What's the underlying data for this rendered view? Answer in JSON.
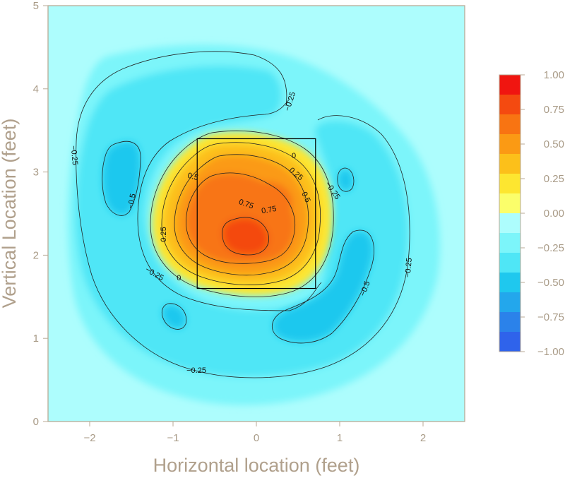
{
  "chart_data": {
    "type": "heatmap",
    "title": "",
    "xlabel": "Horizontal location (feet)",
    "ylabel": "Vertical Location (feet)",
    "xlim": [
      -2.5,
      2.5
    ],
    "ylim": [
      0,
      5
    ],
    "x_ticks": [
      -2,
      -1,
      0,
      1,
      2
    ],
    "x_tick_labels": [
      "−2",
      "−1",
      "0",
      "1",
      "2"
    ],
    "y_ticks": [
      0,
      1,
      2,
      3,
      4,
      5
    ],
    "y_tick_labels": [
      "0",
      "1",
      "2",
      "3",
      "4",
      "5"
    ],
    "strike_zone": {
      "x": [
        -0.71,
        0.71
      ],
      "y": [
        1.6,
        3.4
      ]
    },
    "colorbar": {
      "range": [
        -1.0,
        1.0
      ],
      "ticks": [
        1.0,
        0.75,
        0.5,
        0.25,
        0.0,
        -0.25,
        -0.5,
        -0.75,
        -1.0
      ],
      "tick_labels": [
        "1.00",
        "0.75",
        "0.50",
        "0.25",
        "0.00",
        "−0.25",
        "−0.50",
        "−0.75",
        "−1.00"
      ],
      "colors": [
        "#f01510",
        "#f44a10",
        "#f87412",
        "#fb9a14",
        "#fcc01a",
        "#fde630",
        "#fbfe6a",
        "#adfdfd",
        "#7cf5fa",
        "#4fe6f6",
        "#1fc8ee",
        "#23a7ec",
        "#2b82ea",
        "#2f63eb"
      ]
    },
    "contour_labels": [
      {
        "text": "−0.25",
        "x": 0.4,
        "y": 3.85,
        "angle": -72
      },
      {
        "text": "−0.25",
        "x": -2.18,
        "y": 3.2,
        "angle": 85
      },
      {
        "text": "−0.5",
        "x": -1.5,
        "y": 2.65,
        "angle": -80
      },
      {
        "text": "−0.25",
        "x": 0.92,
        "y": 2.78,
        "angle": 55
      },
      {
        "text": "−0.25",
        "x": 1.82,
        "y": 1.85,
        "angle": -85
      },
      {
        "text": "−0.5",
        "x": 1.3,
        "y": 1.6,
        "angle": -70
      },
      {
        "text": "−0.25",
        "x": -1.22,
        "y": 1.78,
        "angle": 30
      },
      {
        "text": "−0.25",
        "x": -0.72,
        "y": 0.62,
        "angle": 0
      },
      {
        "text": "0",
        "x": 0.45,
        "y": 3.2,
        "angle": 0
      },
      {
        "text": "0",
        "x": -0.93,
        "y": 1.73,
        "angle": 0
      },
      {
        "text": "0.25",
        "x": 0.48,
        "y": 2.98,
        "angle": 40
      },
      {
        "text": "0.25",
        "x": -1.12,
        "y": 2.25,
        "angle": -90
      },
      {
        "text": "0.5",
        "x": -0.76,
        "y": 2.95,
        "angle": 15
      },
      {
        "text": "0.5",
        "x": 0.6,
        "y": 2.7,
        "angle": 65
      },
      {
        "text": "0.75",
        "x": -0.12,
        "y": 2.62,
        "angle": 20
      },
      {
        "text": "0.75",
        "x": 0.15,
        "y": 2.55,
        "angle": -10
      }
    ]
  }
}
